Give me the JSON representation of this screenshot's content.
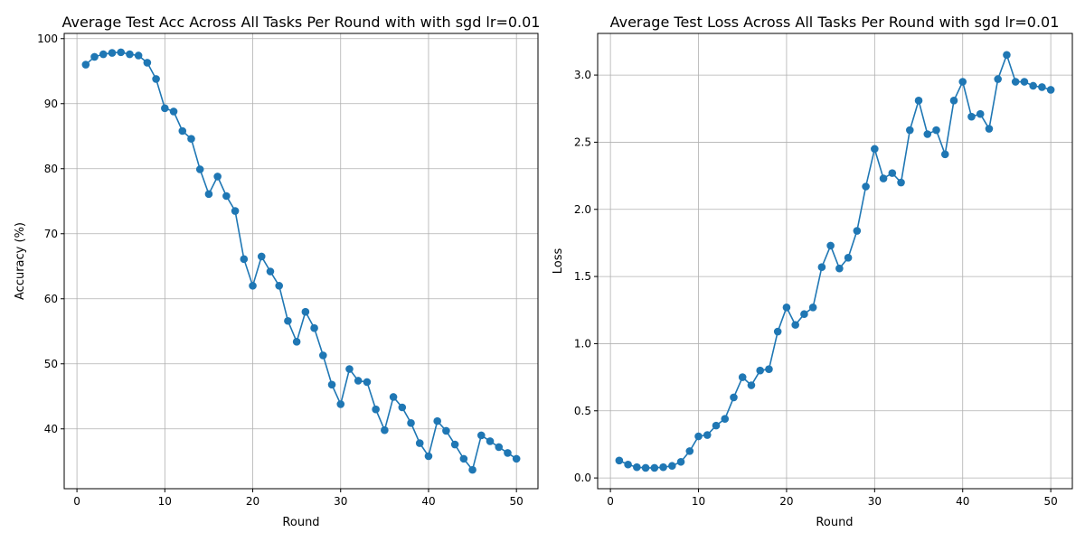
{
  "chart_data": [
    {
      "type": "line",
      "title": "Average Test Acc Across All Tasks Per Round with with sgd lr=0.01",
      "xlabel": "Round",
      "ylabel": "Accuracy (%)",
      "xlim": [
        -1.45,
        52.45
      ],
      "ylim": [
        30.8,
        100.8
      ],
      "xticks": [
        0,
        10,
        20,
        30,
        40,
        50
      ],
      "yticks": [
        40,
        50,
        60,
        70,
        80,
        90,
        100
      ],
      "grid": true,
      "color": "#1f77b4",
      "x": [
        1,
        2,
        3,
        4,
        5,
        6,
        7,
        8,
        9,
        10,
        11,
        12,
        13,
        14,
        15,
        16,
        17,
        18,
        19,
        20,
        21,
        22,
        23,
        24,
        25,
        26,
        27,
        28,
        29,
        30,
        31,
        32,
        33,
        34,
        35,
        36,
        37,
        38,
        39,
        40,
        41,
        42,
        43,
        44,
        45,
        46,
        47,
        48,
        49,
        50
      ],
      "y": [
        96.0,
        97.2,
        97.6,
        97.8,
        97.9,
        97.6,
        97.4,
        96.3,
        93.8,
        89.3,
        88.8,
        85.8,
        84.6,
        79.9,
        76.1,
        78.8,
        75.8,
        73.5,
        66.1,
        62.0,
        66.5,
        64.2,
        62.0,
        56.6,
        53.4,
        58.0,
        55.5,
        51.3,
        46.8,
        43.8,
        49.2,
        47.4,
        47.2,
        43.0,
        39.8,
        44.9,
        43.3,
        40.9,
        37.8,
        35.8,
        41.2,
        39.7,
        37.6,
        35.4,
        33.7,
        39.0,
        38.1,
        37.2,
        36.3,
        35.4
      ]
    },
    {
      "type": "line",
      "title": "Average Test Loss Across All Tasks Per Round with sgd lr=0.01",
      "xlabel": "Round",
      "ylabel": "Loss",
      "xlim": [
        -1.45,
        52.45
      ],
      "ylim": [
        -0.08,
        3.31
      ],
      "xticks": [
        0,
        10,
        20,
        30,
        40,
        50
      ],
      "yticks": [
        0.0,
        0.5,
        1.0,
        1.5,
        2.0,
        2.5,
        3.0
      ],
      "ytick_labels": [
        "0.0",
        "0.5",
        "1.0",
        "1.5",
        "2.0",
        "2.5",
        "3.0"
      ],
      "grid": true,
      "color": "#1f77b4",
      "x": [
        1,
        2,
        3,
        4,
        5,
        6,
        7,
        8,
        9,
        10,
        11,
        12,
        13,
        14,
        15,
        16,
        17,
        18,
        19,
        20,
        21,
        22,
        23,
        24,
        25,
        26,
        27,
        28,
        29,
        30,
        31,
        32,
        33,
        34,
        35,
        36,
        37,
        38,
        39,
        40,
        41,
        42,
        43,
        44,
        45,
        46,
        47,
        48,
        49,
        50
      ],
      "y": [
        0.13,
        0.1,
        0.08,
        0.075,
        0.075,
        0.08,
        0.09,
        0.12,
        0.2,
        0.31,
        0.32,
        0.39,
        0.44,
        0.6,
        0.75,
        0.69,
        0.8,
        0.81,
        1.09,
        1.27,
        1.14,
        1.22,
        1.27,
        1.57,
        1.73,
        1.56,
        1.64,
        1.84,
        2.17,
        2.45,
        2.23,
        2.27,
        2.2,
        2.59,
        2.81,
        2.56,
        2.59,
        2.41,
        2.81,
        2.95,
        2.69,
        2.71,
        2.6,
        2.97,
        3.15,
        2.95,
        2.95,
        2.92,
        2.91,
        2.89
      ]
    }
  ]
}
